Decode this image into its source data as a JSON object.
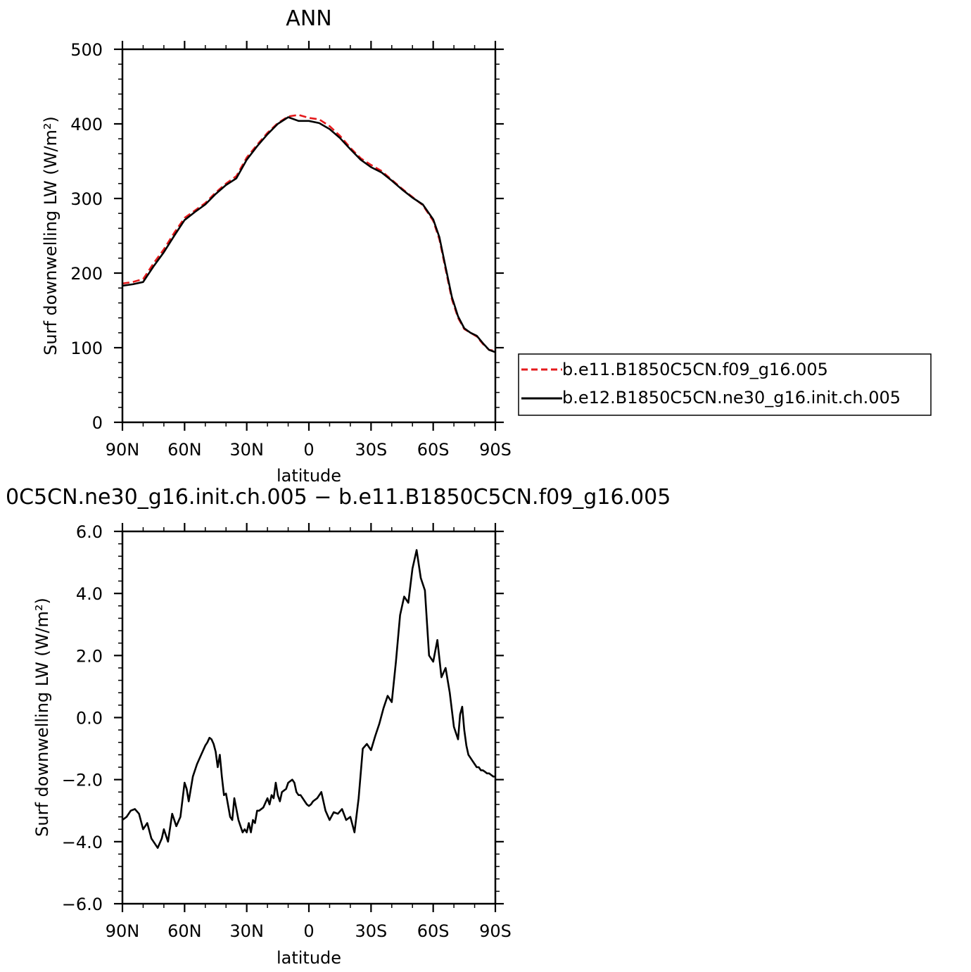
{
  "chart_data": [
    {
      "type": "line",
      "title": "ANN",
      "xlabel": "latitude",
      "ylabel": "Surf downwelling LW (W/m²)",
      "xlim": [
        90,
        -90
      ],
      "ylim": [
        0,
        500
      ],
      "x_ticks": [
        90,
        60,
        30,
        0,
        -30,
        -60,
        -90
      ],
      "x_tick_labels": [
        "90N",
        "60N",
        "30N",
        "0",
        "30S",
        "60S",
        "90S"
      ],
      "y_ticks": [
        0,
        100,
        200,
        300,
        400,
        500
      ],
      "y_tick_labels": [
        "0",
        "100",
        "200",
        "300",
        "400",
        "500"
      ],
      "grid": false,
      "legend_position": "right, outside plot",
      "series": [
        {
          "name": "b.e11.B1850C5CN.f09_g16.005",
          "color": "#e41a1c",
          "dash": "dashed",
          "x": [
            90,
            85,
            80,
            75,
            70,
            65,
            60,
            55,
            50,
            45,
            40,
            35,
            30,
            25,
            20,
            15,
            10,
            5,
            0,
            -5,
            -10,
            -15,
            -20,
            -25,
            -30,
            -35,
            -40,
            -45,
            -50,
            -55,
            -60,
            -63,
            -66,
            -69,
            -72,
            -75,
            -78,
            -81,
            -84,
            -87,
            -90
          ],
          "y": [
            186,
            188,
            192,
            213,
            232,
            254,
            274,
            284,
            294,
            308,
            320,
            330,
            355,
            372,
            388,
            401,
            410,
            412,
            408,
            406,
            397,
            384,
            368,
            354,
            345,
            337,
            325,
            313,
            302,
            291,
            270,
            245,
            205,
            165,
            140,
            125,
            120,
            115,
            105,
            97,
            96
          ]
        },
        {
          "name": "b.e12.B1850C5CN.ne30_g16.init.ch.005",
          "color": "#000000",
          "dash": "solid",
          "x": [
            90,
            85,
            80,
            75,
            70,
            65,
            60,
            55,
            50,
            45,
            40,
            35,
            30,
            25,
            20,
            15,
            10,
            5,
            0,
            -5,
            -10,
            -15,
            -20,
            -25,
            -30,
            -35,
            -40,
            -45,
            -50,
            -55,
            -60,
            -63,
            -66,
            -69,
            -72,
            -75,
            -78,
            -81,
            -84,
            -87,
            -90
          ],
          "y": [
            183,
            185,
            188,
            209,
            228,
            250,
            271,
            282,
            292,
            306,
            318,
            327,
            352,
            370,
            386,
            400,
            409,
            404,
            404,
            401,
            393,
            381,
            366,
            352,
            342,
            335,
            324,
            312,
            301,
            292,
            272,
            248,
            208,
            168,
            142,
            126,
            120,
            116,
            106,
            97,
            94
          ]
        }
      ]
    },
    {
      "type": "line",
      "title": "0C5CN.ne30_g16.init.ch.005 − b.e11.B1850C5CN.f09_g16.005",
      "xlabel": "latitude",
      "ylabel": "Surf downwelling LW (W/m²)",
      "xlim": [
        90,
        -90
      ],
      "ylim": [
        -6,
        6
      ],
      "x_ticks": [
        90,
        60,
        30,
        0,
        -30,
        -60,
        -90
      ],
      "x_tick_labels": [
        "90N",
        "60N",
        "30N",
        "0",
        "30S",
        "60S",
        "90S"
      ],
      "y_ticks": [
        -6,
        -4,
        -2,
        0,
        2,
        4,
        6
      ],
      "y_tick_labels": [
        "−6.0",
        "−4.0",
        "−2.0",
        "0.0",
        "2.0",
        "4.0",
        "6.0"
      ],
      "grid": false,
      "series": [
        {
          "color": "#000000",
          "dash": "solid",
          "x": [
            90,
            88,
            86,
            84,
            82,
            80,
            78,
            76,
            75,
            73,
            71,
            70,
            68,
            66,
            64,
            62,
            60,
            59,
            58,
            56,
            54,
            52,
            50,
            49,
            48,
            47,
            46,
            45,
            44,
            43,
            42,
            41,
            40,
            38,
            37,
            36,
            34,
            33,
            32,
            31,
            30,
            29,
            28,
            27,
            26,
            25,
            24,
            22,
            20,
            19,
            18,
            17,
            16,
            15,
            14,
            13,
            12,
            11,
            10,
            9,
            8,
            7,
            6,
            5,
            4,
            3,
            2,
            1,
            0,
            -1,
            -2,
            -4,
            -6,
            -8,
            -10,
            -12,
            -14,
            -16,
            -18,
            -20,
            -22,
            -24,
            -26,
            -28,
            -30,
            -32,
            -34,
            -36,
            -38,
            -40,
            -42,
            -44,
            -46,
            -48,
            -50,
            -52,
            -54,
            -56,
            -58,
            -60,
            -62,
            -64,
            -66,
            -68,
            -70,
            -72,
            -73,
            -74,
            -75,
            -76,
            -77,
            -78,
            -79,
            -80,
            -81,
            -82,
            -83,
            -84,
            -85,
            -86,
            -87,
            -88,
            -89,
            -90
          ],
          "y": [
            -3.3,
            -3.2,
            -3.0,
            -2.95,
            -3.1,
            -3.6,
            -3.4,
            -3.9,
            -4.0,
            -4.2,
            -3.9,
            -3.6,
            -4.0,
            -3.1,
            -3.5,
            -3.2,
            -2.1,
            -2.3,
            -2.7,
            -1.9,
            -1.5,
            -1.2,
            -0.9,
            -0.8,
            -0.65,
            -0.7,
            -0.85,
            -1.1,
            -1.6,
            -1.2,
            -1.9,
            -2.5,
            -2.45,
            -3.2,
            -3.3,
            -2.6,
            -3.3,
            -3.5,
            -3.7,
            -3.6,
            -3.7,
            -3.4,
            -3.7,
            -3.3,
            -3.4,
            -3.0,
            -3.0,
            -2.9,
            -2.6,
            -2.8,
            -2.5,
            -2.6,
            -2.1,
            -2.5,
            -2.7,
            -2.4,
            -2.35,
            -2.3,
            -2.1,
            -2.05,
            -2.0,
            -2.1,
            -2.4,
            -2.5,
            -2.5,
            -2.6,
            -2.7,
            -2.8,
            -2.85,
            -2.8,
            -2.7,
            -2.6,
            -2.4,
            -3.0,
            -3.3,
            -3.05,
            -3.1,
            -2.95,
            -3.3,
            -3.2,
            -3.7,
            -2.6,
            -1.0,
            -0.85,
            -1.05,
            -0.6,
            -0.2,
            0.3,
            0.7,
            0.5,
            1.8,
            3.3,
            3.9,
            3.7,
            4.8,
            5.4,
            4.5,
            4.1,
            2.0,
            1.8,
            2.5,
            1.3,
            1.6,
            0.8,
            -0.3,
            -0.7,
            0.1,
            0.35,
            -0.4,
            -0.9,
            -1.2,
            -1.3,
            -1.4,
            -1.5,
            -1.6,
            -1.6,
            -1.7,
            -1.7,
            -1.75,
            -1.8,
            -1.8,
            -1.85,
            -1.9,
            -1.9
          ]
        }
      ]
    }
  ]
}
